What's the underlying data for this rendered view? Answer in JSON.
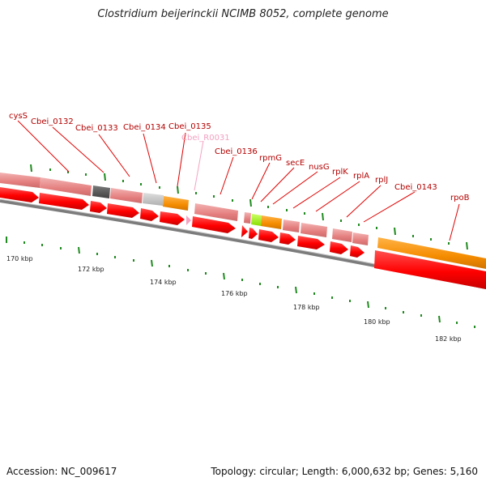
{
  "title": "Clostridium beijerinckii NCIMB 8052, complete genome",
  "footer": {
    "accession": "Accession: NC_009617",
    "summary": "Topology: circular; Length: 6,000,632 bp; Genes: 5,160"
  },
  "gene_labels": [
    "cysS",
    "Cbei_0132",
    "Cbei_0133",
    "Cbei_0134",
    "Cbei_0135",
    "Cbei_R0031",
    "Cbei_0136",
    "rpmG",
    "secE",
    "nusG",
    "rplK",
    "rplA",
    "rplJ",
    "Cbei_0143",
    "rpoB"
  ],
  "kbp_labels": [
    "170 kbp",
    "172 kbp",
    "174 kbp",
    "176 kbp",
    "178 kbp",
    "180 kbp",
    "182 kbp"
  ],
  "colors": {
    "cds_forward": "#e57f7f",
    "cds_reverse": "#ff0000",
    "rna": "#f58c00",
    "unknown": "#c3c3c3",
    "dark_feature": "#5a5a5a",
    "green_feature": "#99f000",
    "pink_feature": "#f4a3c2",
    "label_text": "#b40000",
    "tick": "#1f8a1f",
    "backbone": "#888888"
  }
}
